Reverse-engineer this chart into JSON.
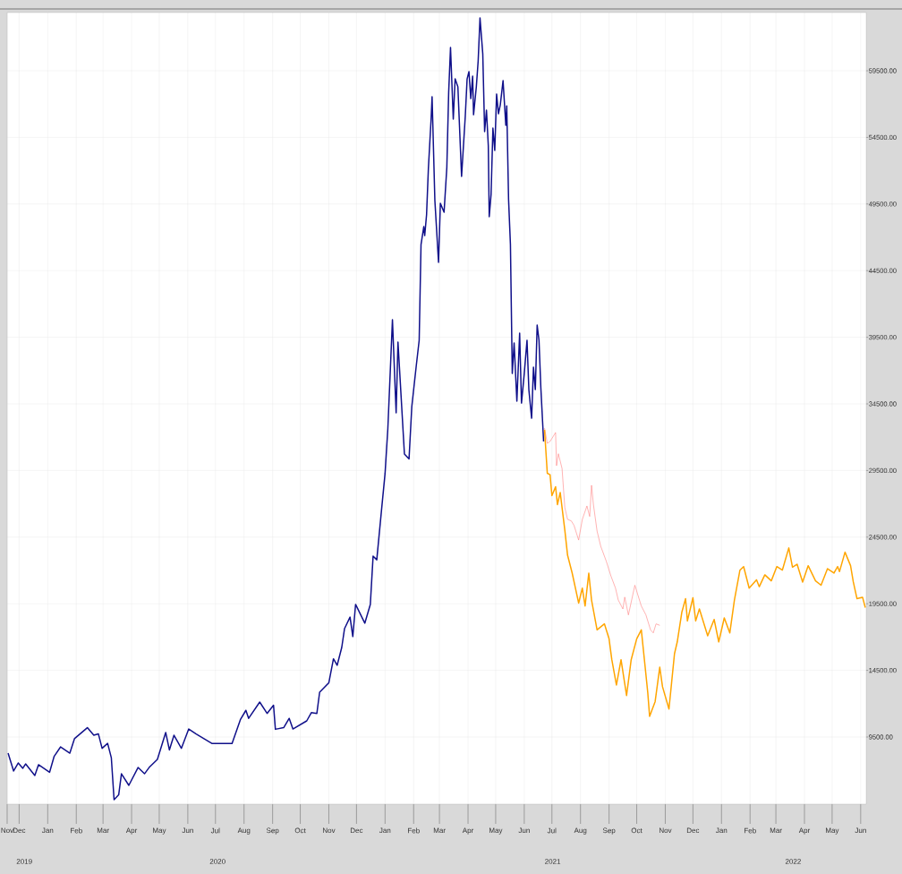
{
  "chart_data": {
    "type": "line",
    "grid": true,
    "xlim": [
      "2019-11-18",
      "2022-06-07"
    ],
    "ylim": [
      4460,
      63870
    ],
    "yticks": [
      {
        "value": 9500,
        "label": "9500.00"
      },
      {
        "value": 14500,
        "label": "14500.00"
      },
      {
        "value": 19500,
        "label": "19500.00"
      },
      {
        "value": 24500,
        "label": "24500.00"
      },
      {
        "value": 29500,
        "label": "29500.00"
      },
      {
        "value": 34500,
        "label": "34500.00"
      },
      {
        "value": 39500,
        "label": "39500.00"
      },
      {
        "value": 44500,
        "label": "44500.00"
      },
      {
        "value": 49500,
        "label": "49500.00"
      },
      {
        "value": 54500,
        "label": "54500.00"
      },
      {
        "value": 59500,
        "label": "59500.00"
      }
    ],
    "xticks": [
      {
        "value": "2019-11-18",
        "label": "Nov"
      },
      {
        "value": "2019-12-01",
        "label": "Dec"
      },
      {
        "value": "2020-01-01",
        "label": "Jan"
      },
      {
        "value": "2020-02-01",
        "label": "Feb"
      },
      {
        "value": "2020-03-01",
        "label": "Mar"
      },
      {
        "value": "2020-04-01",
        "label": "Apr"
      },
      {
        "value": "2020-05-01",
        "label": "May"
      },
      {
        "value": "2020-06-01",
        "label": "Jun"
      },
      {
        "value": "2020-07-01",
        "label": "Jul"
      },
      {
        "value": "2020-08-01",
        "label": "Aug"
      },
      {
        "value": "2020-09-01",
        "label": "Sep"
      },
      {
        "value": "2020-10-01",
        "label": "Oct"
      },
      {
        "value": "2020-11-01",
        "label": "Nov"
      },
      {
        "value": "2020-12-01",
        "label": "Dec"
      },
      {
        "value": "2021-01-01",
        "label": "Jan"
      },
      {
        "value": "2021-02-01",
        "label": "Feb"
      },
      {
        "value": "2021-03-01",
        "label": "Mar"
      },
      {
        "value": "2021-04-01",
        "label": "Apr"
      },
      {
        "value": "2021-05-01",
        "label": "May"
      },
      {
        "value": "2021-06-01",
        "label": "Jun"
      },
      {
        "value": "2021-07-01",
        "label": "Jul"
      },
      {
        "value": "2021-08-01",
        "label": "Aug"
      },
      {
        "value": "2021-09-01",
        "label": "Sep"
      },
      {
        "value": "2021-10-01",
        "label": "Oct"
      },
      {
        "value": "2021-11-01",
        "label": "Nov"
      },
      {
        "value": "2021-12-01",
        "label": "Dec"
      },
      {
        "value": "2022-01-01",
        "label": "Jan"
      },
      {
        "value": "2022-02-01",
        "label": "Feb"
      },
      {
        "value": "2022-03-01",
        "label": "Mar"
      },
      {
        "value": "2022-04-01",
        "label": "Apr"
      },
      {
        "value": "2022-05-01",
        "label": "May"
      },
      {
        "value": "2022-06-01",
        "label": "Jun"
      }
    ],
    "annotations": [
      "2019",
      "2020",
      "2021",
      "2022"
    ],
    "series": [
      {
        "color": "#10108a",
        "x": [
          "2019-11-19",
          "2019-11-25",
          "2019-11-30",
          "2019-12-05",
          "2019-12-08",
          "2019-12-18",
          "2019-12-22",
          "2020-01-03",
          "2020-01-08",
          "2020-01-15",
          "2020-01-25",
          "2020-01-30",
          "2020-02-13",
          "2020-02-20",
          "2020-02-25",
          "2020-02-29",
          "2020-03-06",
          "2020-03-10",
          "2020-03-13",
          "2020-03-18",
          "2020-03-21",
          "2020-03-29",
          "2020-04-08",
          "2020-04-15",
          "2020-04-20",
          "2020-04-29",
          "2020-05-08",
          "2020-05-12",
          "2020-05-17",
          "2020-05-25",
          "2020-06-02",
          "2020-06-10",
          "2020-06-27",
          "2020-07-19",
          "2020-07-28",
          "2020-08-03",
          "2020-08-06",
          "2020-08-18",
          "2020-08-26",
          "2020-09-02",
          "2020-09-04",
          "2020-09-13",
          "2020-09-19",
          "2020-09-23",
          "2020-10-08",
          "2020-10-13",
          "2020-10-19",
          "2020-10-22",
          "2020-11-01",
          "2020-11-06",
          "2020-11-10",
          "2020-11-15",
          "2020-11-18",
          "2020-11-24",
          "2020-11-27",
          "2020-11-30",
          "2020-12-10",
          "2020-12-16",
          "2020-12-19",
          "2020-12-23",
          "2020-12-28",
          "2021-01-01",
          "2021-01-04",
          "2021-01-09",
          "2021-01-13",
          "2021-01-15",
          "2021-01-22",
          "2021-01-27",
          "2021-01-30",
          "2021-02-04",
          "2021-02-07",
          "2021-02-09",
          "2021-02-12",
          "2021-02-13",
          "2021-02-15",
          "2021-02-17",
          "2021-02-20",
          "2021-02-21",
          "2021-02-24",
          "2021-02-28",
          "2021-03-02",
          "2021-03-06",
          "2021-03-09",
          "2021-03-11",
          "2021-03-13",
          "2021-03-16",
          "2021-03-18",
          "2021-03-21",
          "2021-03-25",
          "2021-03-29",
          "2021-03-31",
          "2021-04-02",
          "2021-04-04",
          "2021-04-06",
          "2021-04-07",
          "2021-04-10",
          "2021-04-12",
          "2021-04-14",
          "2021-04-17",
          "2021-04-19",
          "2021-04-21",
          "2021-04-23",
          "2021-04-24",
          "2021-04-26",
          "2021-04-28",
          "2021-04-30",
          "2021-05-02",
          "2021-05-04",
          "2021-05-06",
          "2021-05-09",
          "2021-05-12",
          "2021-05-13",
          "2021-05-15",
          "2021-05-17",
          "2021-05-19",
          "2021-05-21",
          "2021-05-24",
          "2021-05-27",
          "2021-05-29",
          "2021-06-01",
          "2021-06-04",
          "2021-06-06",
          "2021-06-09",
          "2021-06-11",
          "2021-06-13",
          "2021-06-15",
          "2021-06-17",
          "2021-06-19",
          "2021-06-22"
        ],
        "values": [
          8290,
          6950,
          7550,
          7150,
          7480,
          6610,
          7420,
          6850,
          8050,
          8760,
          8290,
          9370,
          10200,
          9630,
          9730,
          8650,
          9020,
          7950,
          4800,
          5160,
          6740,
          5870,
          7210,
          6740,
          7210,
          7820,
          9840,
          8530,
          9630,
          8650,
          10100,
          9730,
          9020,
          9020,
          10800,
          11500,
          10900,
          12120,
          11270,
          11880,
          10080,
          10200,
          10900,
          10100,
          10710,
          11330,
          11270,
          12860,
          13570,
          15370,
          14880,
          16220,
          17630,
          18500,
          17040,
          19450,
          18040,
          19450,
          23070,
          22800,
          26430,
          29280,
          32640,
          40810,
          33830,
          39140,
          30740,
          30370,
          34300,
          37460,
          39270,
          46460,
          47800,
          47130,
          48680,
          52170,
          55960,
          57550,
          49800,
          45120,
          49550,
          48880,
          52240,
          57880,
          61240,
          55870,
          58890,
          58290,
          51570,
          56070,
          58890,
          59430,
          57410,
          59090,
          56200,
          58290,
          60240,
          63460,
          60770,
          54930,
          56540,
          53850,
          48550,
          50220,
          55200,
          53520,
          57750,
          56270,
          56940,
          58760,
          55400,
          56870,
          49820,
          46460,
          36780,
          39070,
          34700,
          39810,
          34560,
          36780,
          39270,
          35570,
          33420,
          37250,
          35570,
          40410,
          39270,
          35710,
          31680
        ]
      },
      {
        "color": "#ff8080",
        "x": [
          "2021-06-23",
          "2021-06-26",
          "2021-06-29",
          "2021-07-05",
          "2021-07-06",
          "2021-07-08",
          "2021-07-12",
          "2021-07-15",
          "2021-07-18",
          "2021-07-22",
          "2021-07-25",
          "2021-07-30",
          "2021-08-03",
          "2021-08-08",
          "2021-08-11",
          "2021-08-13",
          "2021-08-15",
          "2021-08-19",
          "2021-08-23",
          "2021-08-29",
          "2021-09-03",
          "2021-09-08",
          "2021-09-11",
          "2021-09-16",
          "2021-09-18",
          "2021-09-22",
          "2021-09-29",
          "2021-10-06",
          "2021-10-11",
          "2021-10-16",
          "2021-10-19",
          "2021-10-22",
          "2021-10-26"
        ],
        "values": [
          32680,
          31540,
          31680,
          32350,
          29860,
          30760,
          29650,
          26720,
          25830,
          25720,
          25380,
          24280,
          25830,
          26840,
          26050,
          28390,
          26970,
          24950,
          23810,
          22690,
          21590,
          20670,
          19780,
          19110,
          20000,
          18660,
          20890,
          19330,
          18660,
          17540,
          17310,
          17990,
          17880
        ]
      },
      {
        "color": "#ffa500",
        "x": [
          "2021-06-23",
          "2021-06-26",
          "2021-06-29",
          "2021-07-01",
          "2021-07-05",
          "2021-07-07",
          "2021-07-10",
          "2021-07-15",
          "2021-07-18",
          "2021-07-23",
          "2021-07-30",
          "2021-08-03",
          "2021-08-06",
          "2021-08-10",
          "2021-08-13",
          "2021-08-19",
          "2021-08-27",
          "2021-09-01",
          "2021-09-04",
          "2021-09-09",
          "2021-09-14",
          "2021-09-20",
          "2021-09-25",
          "2021-10-01",
          "2021-10-06",
          "2021-10-10",
          "2021-10-13",
          "2021-10-15",
          "2021-10-21",
          "2021-10-26",
          "2021-10-29",
          "2021-11-05",
          "2021-11-11",
          "2021-11-14",
          "2021-11-19",
          "2021-11-23",
          "2021-11-25",
          "2021-12-01",
          "2021-12-04",
          "2021-12-08",
          "2021-12-17",
          "2021-12-24",
          "2021-12-29",
          "2022-01-04",
          "2022-01-10",
          "2022-01-15",
          "2022-01-21",
          "2022-01-25",
          "2022-01-31",
          "2022-02-08",
          "2022-02-11",
          "2022-02-17",
          "2022-02-24",
          "2022-03-02",
          "2022-03-08",
          "2022-03-15",
          "2022-03-19",
          "2022-03-24",
          "2022-03-30",
          "2022-04-05",
          "2022-04-13",
          "2022-04-19",
          "2022-04-26",
          "2022-05-03",
          "2022-05-07",
          "2022-05-09",
          "2022-05-15",
          "2022-05-21",
          "2022-05-24",
          "2022-05-28",
          "2022-06-03",
          "2022-06-06"
        ],
        "values": [
          32550,
          29290,
          29180,
          27610,
          28280,
          26940,
          27850,
          25030,
          23140,
          21800,
          19550,
          20670,
          19330,
          21800,
          19780,
          17540,
          17990,
          16870,
          15300,
          13400,
          15300,
          12610,
          15300,
          16870,
          17540,
          14860,
          12830,
          11050,
          12160,
          14740,
          13270,
          11600,
          15750,
          16640,
          18880,
          19880,
          18210,
          19950,
          18210,
          19110,
          17090,
          18320,
          16640,
          18440,
          17310,
          19780,
          22020,
          22290,
          20670,
          21300,
          20780,
          21670,
          21220,
          22290,
          22020,
          23690,
          22250,
          22470,
          21130,
          22360,
          21220,
          20890,
          22130,
          21800,
          22290,
          21910,
          23370,
          22360,
          21130,
          19880,
          19990,
          19210
        ]
      }
    ]
  }
}
